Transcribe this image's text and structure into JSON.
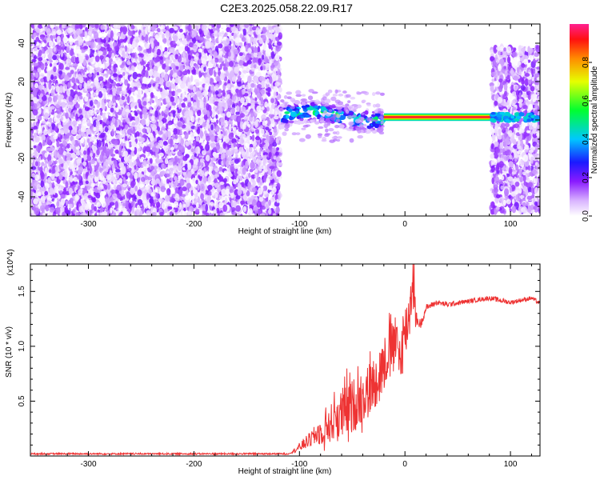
{
  "title": "C2E3.2025.058.22.09.R17",
  "chart_data": [
    {
      "type": "heatmap",
      "xlabel": "Height of straight line (km)",
      "ylabel": "Frequency (Hz)",
      "xlim": [
        -355,
        128
      ],
      "ylim": [
        -50,
        50
      ],
      "x_ticks": [
        -300,
        -200,
        -100,
        0,
        100
      ],
      "y_ticks": [
        -40,
        -20,
        0,
        20,
        40
      ],
      "grid": false,
      "colorbar": {
        "label": "Normalized spectral amplitude",
        "range": [
          0,
          1
        ],
        "ticks": [
          0.0,
          0.2,
          0.4,
          0.6,
          0.8
        ],
        "tick_labels": [
          "0.0",
          "0.2",
          "0.4",
          "0.6",
          "0.8"
        ],
        "colormap": "rainbow (white-violet-blue-cyan-green-yellow-red-magenta)"
      },
      "regions": [
        {
          "x_range": [
            -355,
            -118
          ],
          "freq_range": [
            -50,
            50
          ],
          "pattern": "broadband noise",
          "amplitude_range": [
            0.0,
            0.2
          ]
        },
        {
          "x_range": [
            -118,
            -20
          ],
          "center_freq": 2,
          "half_width": 6,
          "pattern": "noisy tone",
          "amplitude_range": [
            0.2,
            0.6
          ]
        },
        {
          "x_range": [
            -20,
            82
          ],
          "center_freq": 1.5,
          "half_width": 2,
          "pattern": "clean tone",
          "amplitude_range": [
            0.9,
            1.0
          ]
        },
        {
          "x_range": [
            82,
            128
          ],
          "freq_range": [
            -48,
            38
          ],
          "pattern": "noise plus tone at 1.5 Hz",
          "amplitude_range": [
            0.0,
            0.2
          ]
        }
      ]
    },
    {
      "type": "line",
      "xlabel": "Height of straight line (km)",
      "ylabel": "SNR (10 * v/v)",
      "y_multiplier": "(x10^4)",
      "xlim": [
        -355,
        128
      ],
      "ylim": [
        0,
        17500
      ],
      "x_ticks": [
        -300,
        -200,
        -100,
        0,
        100
      ],
      "y_ticks": [
        5000,
        10000,
        15000
      ],
      "y_tick_labels": [
        "0.5",
        "1.0",
        "1.5"
      ],
      "grid": false,
      "series": [
        {
          "color": "#ee3333",
          "x": [
            -355,
            -300,
            -250,
            -200,
            -150,
            -110,
            -100,
            -90,
            -80,
            -70,
            -60,
            -50,
            -40,
            -30,
            -20,
            -10,
            -5,
            0,
            5,
            8,
            10,
            15,
            20,
            30,
            40,
            60,
            80,
            90,
            100,
            110,
            120,
            128
          ],
          "values": [
            200,
            200,
            200,
            200,
            200,
            200,
            800,
            1500,
            2200,
            3000,
            3800,
            4500,
            5500,
            6500,
            8500,
            10500,
            9000,
            11000,
            13500,
            17500,
            12500,
            12000,
            13500,
            14000,
            13800,
            14100,
            14400,
            14200,
            14000,
            14200,
            14400,
            13900
          ],
          "noise_amplitude": [
            0,
            0,
            0,
            0,
            0,
            0,
            400,
            700,
            1200,
            1800,
            2500,
            2500,
            2500,
            2500,
            2400,
            2400,
            2500,
            2800,
            2500,
            3000,
            800,
            400,
            300,
            250,
            250,
            200,
            200,
            250,
            200,
            200,
            200,
            200
          ]
        }
      ]
    }
  ]
}
